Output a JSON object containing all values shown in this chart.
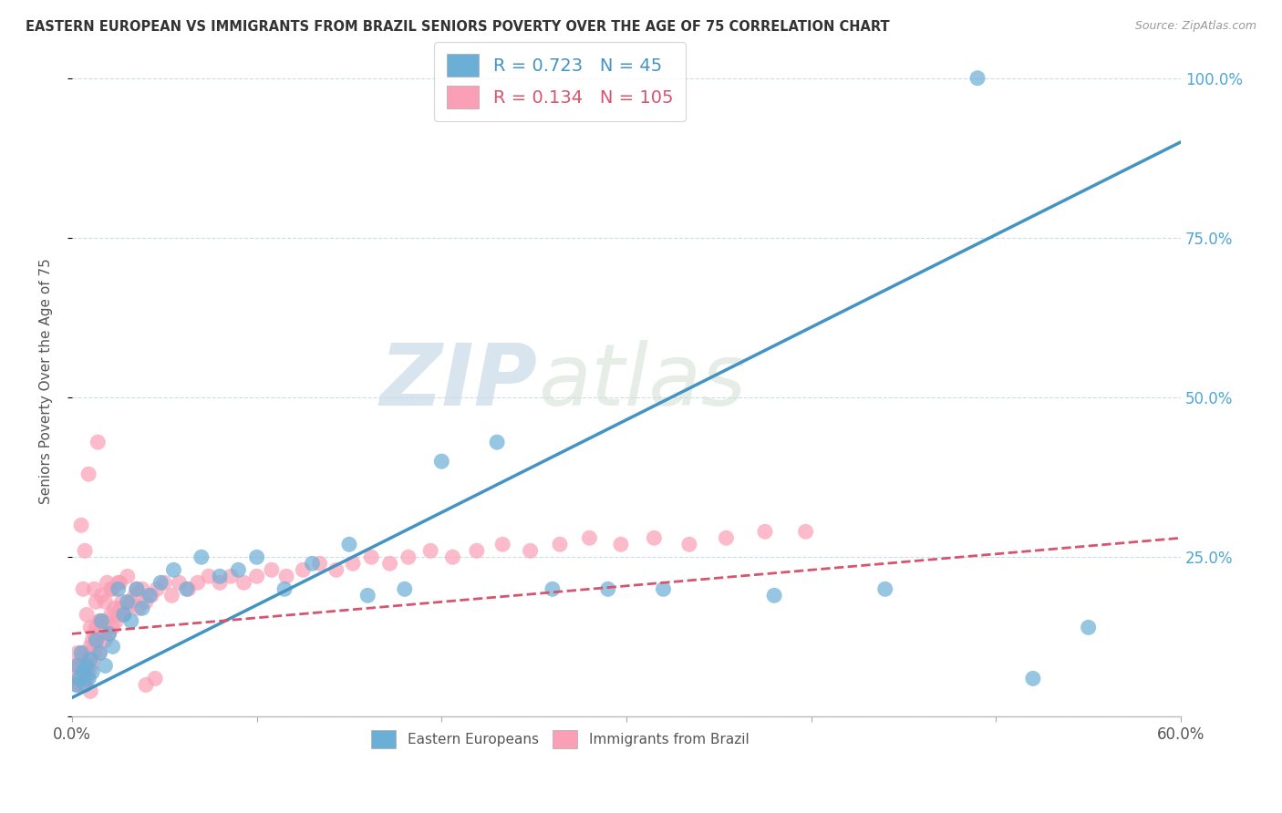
{
  "title": "EASTERN EUROPEAN VS IMMIGRANTS FROM BRAZIL SENIORS POVERTY OVER THE AGE OF 75 CORRELATION CHART",
  "source": "Source: ZipAtlas.com",
  "ylabel": "Seniors Poverty Over the Age of 75",
  "xlim": [
    0.0,
    0.6
  ],
  "ylim": [
    0.0,
    1.05
  ],
  "xticks": [
    0.0,
    0.1,
    0.2,
    0.3,
    0.4,
    0.5,
    0.6
  ],
  "xticklabels": [
    "0.0%",
    "",
    "",
    "",
    "",
    "",
    "60.0%"
  ],
  "yticks_right": [
    0.0,
    0.25,
    0.5,
    0.75,
    1.0
  ],
  "yticklabels_right": [
    "",
    "25.0%",
    "50.0%",
    "75.0%",
    "100.0%"
  ],
  "blue_R": 0.723,
  "blue_N": 45,
  "pink_R": 0.134,
  "pink_N": 105,
  "blue_color": "#6baed6",
  "pink_color": "#fa9fb5",
  "blue_line_color": "#4393c3",
  "pink_line_color": "#d6546e",
  "blue_label": "Eastern Europeans",
  "pink_label": "Immigrants from Brazil",
  "watermark_zip": "ZIP",
  "watermark_atlas": "atlas",
  "blue_scatter_x": [
    0.002,
    0.003,
    0.004,
    0.005,
    0.006,
    0.007,
    0.008,
    0.009,
    0.01,
    0.011,
    0.013,
    0.015,
    0.016,
    0.018,
    0.02,
    0.022,
    0.025,
    0.028,
    0.03,
    0.032,
    0.035,
    0.038,
    0.042,
    0.048,
    0.055,
    0.062,
    0.07,
    0.08,
    0.09,
    0.1,
    0.115,
    0.13,
    0.15,
    0.16,
    0.18,
    0.2,
    0.23,
    0.26,
    0.29,
    0.32,
    0.38,
    0.44,
    0.49,
    0.52,
    0.55
  ],
  "blue_scatter_y": [
    0.05,
    0.08,
    0.06,
    0.1,
    0.07,
    0.05,
    0.08,
    0.06,
    0.09,
    0.07,
    0.12,
    0.1,
    0.15,
    0.08,
    0.13,
    0.11,
    0.2,
    0.16,
    0.18,
    0.15,
    0.2,
    0.17,
    0.19,
    0.21,
    0.23,
    0.2,
    0.25,
    0.22,
    0.23,
    0.25,
    0.2,
    0.24,
    0.27,
    0.19,
    0.2,
    0.4,
    0.43,
    0.2,
    0.2,
    0.2,
    0.19,
    0.2,
    1.0,
    0.06,
    0.14
  ],
  "pink_scatter_x": [
    0.001,
    0.002,
    0.003,
    0.003,
    0.004,
    0.004,
    0.005,
    0.005,
    0.006,
    0.006,
    0.007,
    0.007,
    0.008,
    0.008,
    0.009,
    0.009,
    0.01,
    0.01,
    0.011,
    0.011,
    0.012,
    0.012,
    0.013,
    0.013,
    0.014,
    0.015,
    0.015,
    0.016,
    0.017,
    0.018,
    0.019,
    0.02,
    0.021,
    0.022,
    0.023,
    0.024,
    0.025,
    0.026,
    0.027,
    0.028,
    0.03,
    0.032,
    0.034,
    0.036,
    0.038,
    0.04,
    0.043,
    0.046,
    0.05,
    0.054,
    0.058,
    0.063,
    0.068,
    0.074,
    0.08,
    0.086,
    0.093,
    0.1,
    0.108,
    0.116,
    0.125,
    0.134,
    0.143,
    0.152,
    0.162,
    0.172,
    0.182,
    0.194,
    0.206,
    0.219,
    0.233,
    0.248,
    0.264,
    0.28,
    0.297,
    0.315,
    0.334,
    0.354,
    0.375,
    0.397,
    0.006,
    0.008,
    0.01,
    0.013,
    0.016,
    0.019,
    0.022,
    0.026,
    0.005,
    0.007,
    0.009,
    0.012,
    0.015,
    0.018,
    0.021,
    0.025,
    0.03,
    0.035,
    0.04,
    0.045,
    0.004,
    0.006,
    0.007,
    0.01,
    0.014
  ],
  "pink_scatter_y": [
    0.06,
    0.08,
    0.05,
    0.1,
    0.06,
    0.08,
    0.07,
    0.09,
    0.05,
    0.08,
    0.07,
    0.1,
    0.06,
    0.09,
    0.07,
    0.1,
    0.08,
    0.11,
    0.09,
    0.12,
    0.1,
    0.13,
    0.11,
    0.14,
    0.12,
    0.1,
    0.15,
    0.13,
    0.14,
    0.12,
    0.15,
    0.13,
    0.16,
    0.14,
    0.17,
    0.15,
    0.16,
    0.17,
    0.18,
    0.16,
    0.17,
    0.18,
    0.19,
    0.17,
    0.2,
    0.18,
    0.19,
    0.2,
    0.21,
    0.19,
    0.21,
    0.2,
    0.21,
    0.22,
    0.21,
    0.22,
    0.21,
    0.22,
    0.23,
    0.22,
    0.23,
    0.24,
    0.23,
    0.24,
    0.25,
    0.24,
    0.25,
    0.26,
    0.25,
    0.26,
    0.27,
    0.26,
    0.27,
    0.28,
    0.27,
    0.28,
    0.27,
    0.28,
    0.29,
    0.29,
    0.2,
    0.16,
    0.14,
    0.18,
    0.19,
    0.21,
    0.2,
    0.21,
    0.3,
    0.26,
    0.38,
    0.2,
    0.15,
    0.18,
    0.2,
    0.21,
    0.22,
    0.2,
    0.05,
    0.06,
    0.05,
    0.1,
    0.08,
    0.04,
    0.43
  ]
}
